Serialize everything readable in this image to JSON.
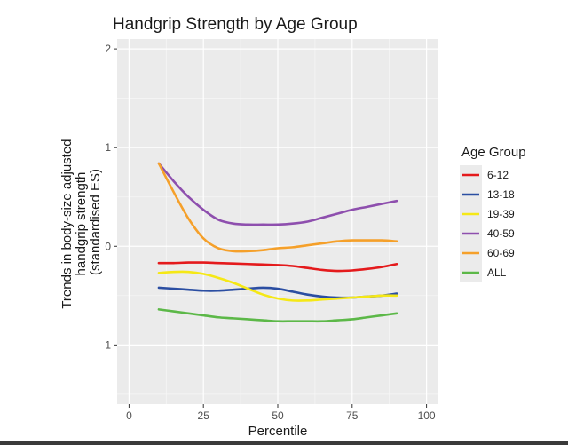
{
  "chart_data": {
    "type": "line",
    "title": "Handgrip Strength by Age Group",
    "xlabel": "Percentile",
    "ylabel_lines": [
      "Trends in body-size adjusted",
      "handgrip strength",
      "(standardised ES)"
    ],
    "xlim": [
      -4,
      104
    ],
    "ylim": [
      -1.6,
      2.1
    ],
    "x_ticks": [
      0,
      25,
      50,
      75,
      100
    ],
    "y_ticks": [
      -1,
      0,
      1,
      2
    ],
    "grid": true,
    "background": "#ebebeb",
    "legend": {
      "title": "Age Group",
      "placement": "right",
      "background": "#ebebeb"
    },
    "series": [
      {
        "name": "6-12",
        "color": "#e41a1c",
        "x": [
          10,
          15,
          20,
          25,
          30,
          35,
          40,
          45,
          50,
          55,
          60,
          65,
          70,
          75,
          80,
          85,
          90
        ],
        "y": [
          -0.17,
          -0.17,
          -0.165,
          -0.165,
          -0.17,
          -0.175,
          -0.18,
          -0.185,
          -0.19,
          -0.2,
          -0.22,
          -0.24,
          -0.25,
          -0.245,
          -0.23,
          -0.21,
          -0.18
        ]
      },
      {
        "name": "13-18",
        "color": "#2b4ea2",
        "x": [
          10,
          15,
          20,
          25,
          30,
          35,
          40,
          45,
          50,
          55,
          60,
          65,
          70,
          75,
          80,
          85,
          90
        ],
        "y": [
          -0.42,
          -0.43,
          -0.44,
          -0.45,
          -0.45,
          -0.44,
          -0.43,
          -0.42,
          -0.43,
          -0.46,
          -0.49,
          -0.51,
          -0.52,
          -0.52,
          -0.51,
          -0.5,
          -0.48
        ]
      },
      {
        "name": "19-39",
        "color": "#f5e816",
        "x": [
          10,
          15,
          20,
          25,
          30,
          35,
          40,
          45,
          50,
          55,
          60,
          65,
          70,
          75,
          80,
          85,
          90
        ],
        "y": [
          -0.27,
          -0.26,
          -0.26,
          -0.28,
          -0.32,
          -0.37,
          -0.43,
          -0.49,
          -0.53,
          -0.55,
          -0.55,
          -0.54,
          -0.53,
          -0.52,
          -0.51,
          -0.5,
          -0.5
        ]
      },
      {
        "name": "40-59",
        "color": "#8e4fae",
        "x": [
          10,
          15,
          20,
          25,
          30,
          35,
          40,
          45,
          50,
          55,
          60,
          65,
          70,
          75,
          80,
          85,
          90
        ],
        "y": [
          0.84,
          0.66,
          0.5,
          0.37,
          0.27,
          0.23,
          0.22,
          0.22,
          0.22,
          0.23,
          0.25,
          0.29,
          0.33,
          0.37,
          0.4,
          0.43,
          0.46
        ]
      },
      {
        "name": "60-69",
        "color": "#f5a02a",
        "x": [
          10,
          15,
          20,
          25,
          30,
          35,
          40,
          45,
          50,
          55,
          60,
          65,
          70,
          75,
          80,
          85,
          90
        ],
        "y": [
          0.84,
          0.55,
          0.28,
          0.08,
          -0.02,
          -0.05,
          -0.05,
          -0.04,
          -0.02,
          -0.01,
          0.01,
          0.03,
          0.05,
          0.06,
          0.06,
          0.06,
          0.05
        ]
      },
      {
        "name": "ALL",
        "color": "#5cb848",
        "x": [
          10,
          15,
          20,
          25,
          30,
          35,
          40,
          45,
          50,
          55,
          60,
          65,
          70,
          75,
          80,
          85,
          90
        ],
        "y": [
          -0.64,
          -0.66,
          -0.68,
          -0.7,
          -0.72,
          -0.73,
          -0.74,
          -0.75,
          -0.76,
          -0.76,
          -0.76,
          -0.76,
          -0.75,
          -0.74,
          -0.72,
          -0.7,
          -0.68
        ]
      }
    ]
  }
}
